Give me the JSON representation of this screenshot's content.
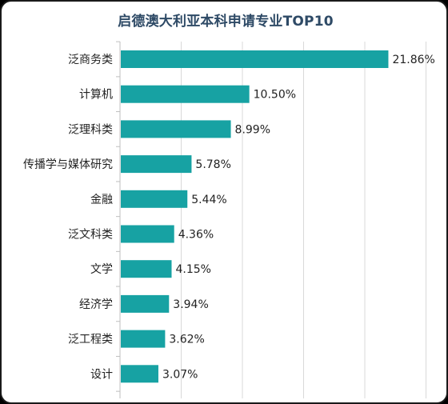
{
  "colors": {
    "bar": "#17a2a3",
    "title": "#2e4a66",
    "grid": "#d9d9d9",
    "axis": "#bfbfbf",
    "text": "#222222"
  },
  "chart_data": {
    "type": "bar",
    "orientation": "horizontal",
    "title": "启德澳大利亚本科申请专业TOP10",
    "xlabel": "",
    "ylabel": "",
    "xlim": [
      0,
      25
    ],
    "grid": true,
    "legend": "none",
    "value_format": "percent",
    "categories": [
      "泛商务类",
      "计算机",
      "泛理科类",
      "传播学与媒体研究",
      "金融",
      "泛文科类",
      "文学",
      "经济学",
      "泛工程类",
      "设计"
    ],
    "values": [
      21.86,
      10.5,
      8.99,
      5.78,
      5.44,
      4.36,
      4.15,
      3.94,
      3.62,
      3.07
    ],
    "value_labels": [
      "21.86%",
      "10.50%",
      "8.99%",
      "5.78%",
      "5.44%",
      "4.36%",
      "4.15%",
      "3.94%",
      "3.62%",
      "3.07%"
    ]
  }
}
